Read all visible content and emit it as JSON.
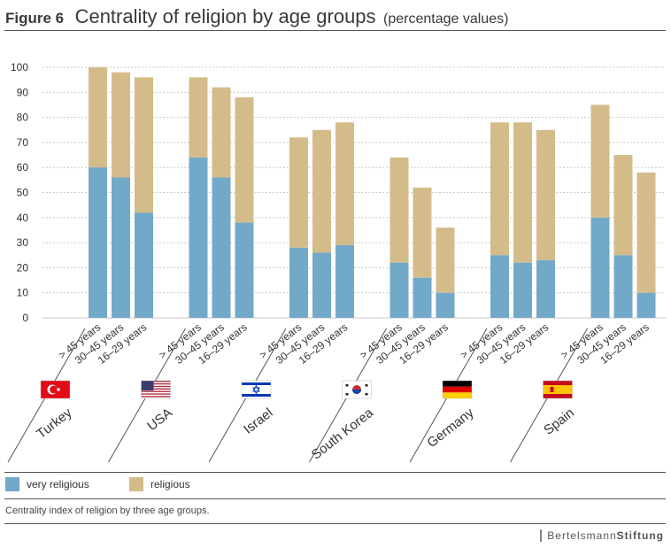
{
  "figure": {
    "label": "Figure 6",
    "title": "Centrality of religion by age groups",
    "subtitle": "(percentage values)"
  },
  "caption": "Centrality index of religion by three age groups.",
  "brand": {
    "light": "Bertelsmann",
    "bold": "Stiftung"
  },
  "colors": {
    "very_religious": "#72a9c8",
    "religious": "#d4bc8a"
  },
  "chart_data": {
    "type": "bar",
    "stacked": true,
    "ylim": [
      0,
      100
    ],
    "yticks": [
      0,
      10,
      20,
      30,
      40,
      50,
      60,
      70,
      80,
      90,
      100
    ],
    "grid": true,
    "legend_position": "bottom",
    "series": [
      {
        "name": "very religious",
        "color": "#72a9c8"
      },
      {
        "name": "religious",
        "color": "#d4bc8a"
      }
    ],
    "groups": [
      {
        "country": "Turkey",
        "flag": "turkey-flag-icon",
        "bars": [
          {
            "label": "> 45 years",
            "very_religious": 60,
            "total": 100
          },
          {
            "label": "30–45 years",
            "very_religious": 56,
            "total": 98
          },
          {
            "label": "16–29 years",
            "very_religious": 42,
            "total": 96
          }
        ]
      },
      {
        "country": "USA",
        "flag": "usa-flag-icon",
        "bars": [
          {
            "label": "> 45 years",
            "very_religious": 64,
            "total": 96
          },
          {
            "label": "30–45 years",
            "very_religious": 56,
            "total": 92
          },
          {
            "label": "16–29 years",
            "very_religious": 38,
            "total": 88
          }
        ]
      },
      {
        "country": "Israel",
        "flag": "israel-flag-icon",
        "bars": [
          {
            "label": "> 45 years",
            "very_religious": 28,
            "total": 72
          },
          {
            "label": "30–45 years",
            "very_religious": 26,
            "total": 75
          },
          {
            "label": "16–29 years",
            "very_religious": 29,
            "total": 78
          }
        ]
      },
      {
        "country": "South Korea",
        "flag": "south-korea-flag-icon",
        "bars": [
          {
            "label": "> 45 years",
            "very_religious": 22,
            "total": 64
          },
          {
            "label": "30–45 years",
            "very_religious": 16,
            "total": 52
          },
          {
            "label": "16–29 years",
            "very_religious": 10,
            "total": 36
          }
        ]
      },
      {
        "country": "Germany",
        "flag": "germany-flag-icon",
        "bars": [
          {
            "label": "> 45 years",
            "very_religious": 25,
            "total": 78
          },
          {
            "label": "30–45 years",
            "very_religious": 22,
            "total": 78
          },
          {
            "label": "16–29 years",
            "very_religious": 23,
            "total": 75
          }
        ]
      },
      {
        "country": "Spain",
        "flag": "spain-flag-icon",
        "bars": [
          {
            "label": "> 45 years",
            "very_religious": 40,
            "total": 85
          },
          {
            "label": "30–45 years",
            "very_religious": 25,
            "total": 65
          },
          {
            "label": "16–29 years",
            "very_religious": 10,
            "total": 58
          }
        ]
      }
    ]
  }
}
